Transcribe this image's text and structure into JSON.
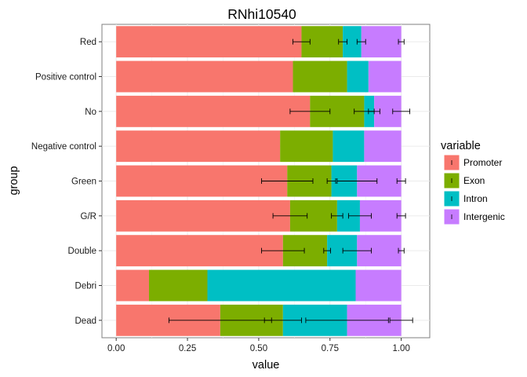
{
  "chart_data": {
    "type": "bar",
    "orientation": "horizontal",
    "stacked": true,
    "title": "RNhi10540",
    "xlabel": "value",
    "ylabel": "group",
    "xlim": [
      -0.05,
      1.1
    ],
    "xticks": [
      0.0,
      0.25,
      0.5,
      0.75,
      1.0
    ],
    "xtick_labels": [
      "0.00",
      "0.25",
      "0.50",
      "0.75",
      "1.00"
    ],
    "grid": true,
    "legend": {
      "title": "variable",
      "position": "right"
    },
    "categories": [
      "Red",
      "Positive control",
      "No",
      "Negative control",
      "Green",
      "G/R",
      "Double",
      "Debri",
      "Dead"
    ],
    "series": [
      {
        "name": "Promoter",
        "color": "#F8766D",
        "values": [
          0.65,
          0.62,
          0.68,
          0.575,
          0.6,
          0.61,
          0.585,
          0.115,
          0.365
        ],
        "errors": [
          0.03,
          null,
          0.07,
          null,
          0.09,
          0.06,
          0.075,
          null,
          0.18
        ]
      },
      {
        "name": "Exon",
        "color": "#7CAE00",
        "values": [
          0.145,
          0.19,
          0.19,
          0.185,
          0.155,
          0.165,
          0.155,
          0.205,
          0.22
        ],
        "errors": [
          0.015,
          null,
          0.035,
          null,
          0.015,
          0.02,
          0.012,
          null,
          0.065
        ]
      },
      {
        "name": "Intron",
        "color": "#00BFC4",
        "values": [
          0.065,
          0.075,
          0.035,
          0.11,
          0.09,
          0.08,
          0.105,
          0.52,
          0.225
        ],
        "errors": [
          0.015,
          null,
          0.02,
          null,
          0.07,
          0.04,
          0.05,
          null,
          0.145
        ]
      },
      {
        "name": "Intergenic",
        "color": "#C77CFF",
        "values": [
          0.14,
          0.115,
          0.095,
          0.13,
          0.155,
          0.145,
          0.155,
          0.16,
          0.19
        ],
        "errors": [
          0.01,
          null,
          0.03,
          null,
          0.015,
          0.015,
          0.01,
          null,
          0.04
        ]
      }
    ]
  }
}
